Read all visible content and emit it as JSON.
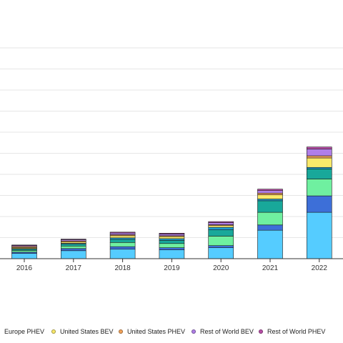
{
  "chart_data": {
    "type": "bar",
    "stacked": true,
    "categories": [
      "2016",
      "2017",
      "2018",
      "2019",
      "2020",
      "2021",
      "2022"
    ],
    "ylim": [
      0,
      10
    ],
    "grid": true,
    "legend_position": "bottom",
    "series": [
      {
        "name": "",
        "color": "#55ccff",
        "values": [
          0.25,
          0.38,
          0.45,
          0.42,
          0.52,
          1.35,
          2.2
        ]
      },
      {
        "name": "",
        "color": "#3d6fd8",
        "values": [
          0.06,
          0.1,
          0.12,
          0.1,
          0.1,
          0.25,
          0.78
        ]
      },
      {
        "name": "",
        "color": "#6ff0a0",
        "values": [
          0.08,
          0.12,
          0.2,
          0.2,
          0.45,
          0.6,
          0.8
        ]
      },
      {
        "name": "",
        "color": "#18a89a",
        "values": [
          0.06,
          0.09,
          0.15,
          0.15,
          0.3,
          0.55,
          0.48
        ]
      },
      {
        "name": "Europe PHEV",
        "color": "#1f9fd0",
        "values": [
          0.03,
          0.04,
          0.07,
          0.08,
          0.12,
          0.08,
          0.07
        ]
      },
      {
        "name": "United States BEV",
        "color": "#f9e96a",
        "values": [
          0.05,
          0.06,
          0.1,
          0.1,
          0.08,
          0.2,
          0.45
        ]
      },
      {
        "name": "United States PHEV",
        "color": "#f3a35a",
        "values": [
          0.05,
          0.05,
          0.05,
          0.04,
          0.04,
          0.08,
          0.1
        ]
      },
      {
        "name": "Rest of World BEV",
        "color": "#b07ee8",
        "values": [
          0.04,
          0.06,
          0.08,
          0.08,
          0.1,
          0.12,
          0.32
        ]
      },
      {
        "name": "Rest of World PHEV",
        "color": "#b94fa8",
        "values": [
          0.03,
          0.03,
          0.04,
          0.04,
          0.05,
          0.07,
          0.1
        ]
      }
    ]
  }
}
